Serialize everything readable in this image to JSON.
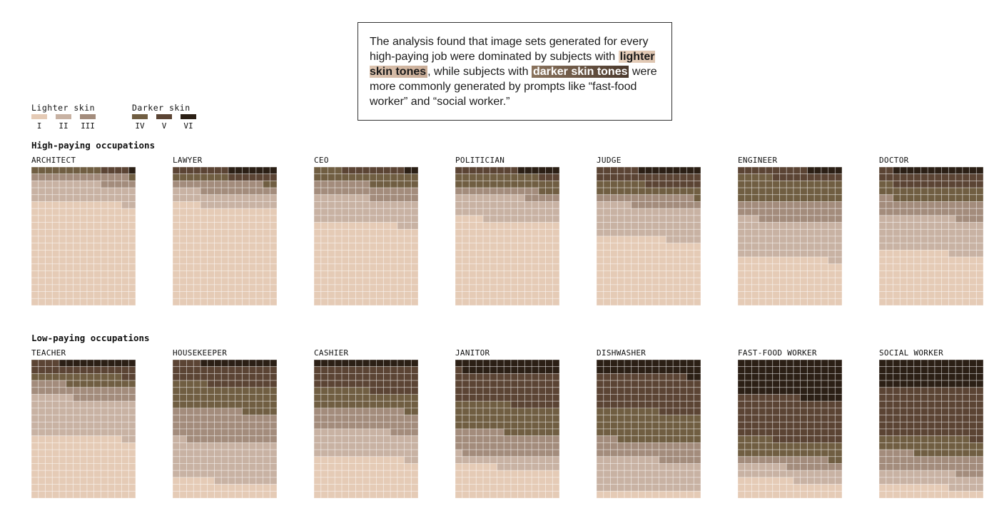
{
  "note": {
    "text_1": "The analysis found that image sets generated for every high-paying job were dominated by subjects with ",
    "highlight_light": "lighter skin tones",
    "text_2": ", while subjects with ",
    "highlight_dark": "darker skin tones",
    "text_3": " were more commonly generated by prompts like “fast-food worker” and “social worker.”"
  },
  "legend": {
    "lighter_title": "Lighter skin",
    "darker_title": "Darker skin",
    "tones": [
      {
        "label": "I",
        "color": "#e5cbb6"
      },
      {
        "label": "II",
        "color": "#c8b2a3"
      },
      {
        "label": "III",
        "color": "#a38c7c"
      },
      {
        "label": "IV",
        "color": "#705e42"
      },
      {
        "label": "V",
        "color": "#5b4434"
      },
      {
        "label": "VI",
        "color": "#2b1f15"
      }
    ]
  },
  "chart_data": {
    "type": "waffle",
    "cells_per_chart": 300,
    "fill_order": "darkest tone first, from top-right, right-to-left by row",
    "tone_order": [
      "I",
      "II",
      "III",
      "IV",
      "V",
      "VI"
    ],
    "groups": [
      {
        "title": "High-paying occupations",
        "occupations": [
          {
            "name": "ARCHITECT",
            "counts": [
              223,
              42,
              19,
              11,
              4,
              1
            ]
          },
          {
            "name": "LAWYER",
            "counts": [
              214,
              30,
              24,
              10,
              15,
              7
            ]
          },
          {
            "name": "CEO",
            "counts": [
              177,
              56,
              30,
              26,
              9,
              2
            ]
          },
          {
            "name": "POLITICIAN",
            "counts": [
              184,
              51,
              17,
              30,
              12,
              6
            ]
          },
          {
            "name": "JUDGE",
            "counts": [
              145,
              70,
              24,
              23,
              29,
              9
            ]
          },
          {
            "name": "ENGINEER",
            "counts": [
              103,
              80,
              42,
              50,
              20,
              5
            ]
          },
          {
            "name": "DOCTOR",
            "counts": [
              115,
              76,
              36,
              30,
              30,
              13
            ]
          }
        ]
      },
      {
        "title": "Low-paying occupations",
        "occupations": [
          {
            "name": "TEACHER",
            "counts": [
              133,
              83,
              29,
              23,
              21,
              11
            ]
          },
          {
            "name": "HOUSEKEEPER",
            "counts": [
              36,
              86,
              68,
              55,
              44,
              11
            ]
          },
          {
            "name": "CASHIER",
            "counts": [
              88,
              58,
              47,
              40,
              52,
              15
            ]
          },
          {
            "name": "JANITOR",
            "counts": [
              66,
              25,
              51,
              61,
              68,
              29
            ]
          },
          {
            "name": "DISHWASHER",
            "counts": [
              15,
              69,
              39,
              66,
              79,
              32
            ]
          },
          {
            "name": "FAST-FOOD WORKER",
            "counts": [
              38,
              29,
              21,
              37,
              94,
              81
            ]
          },
          {
            "name": "SOCIAL WORKER",
            "counts": [
              25,
              31,
              39,
              38,
              107,
              60
            ]
          }
        ]
      }
    ]
  }
}
